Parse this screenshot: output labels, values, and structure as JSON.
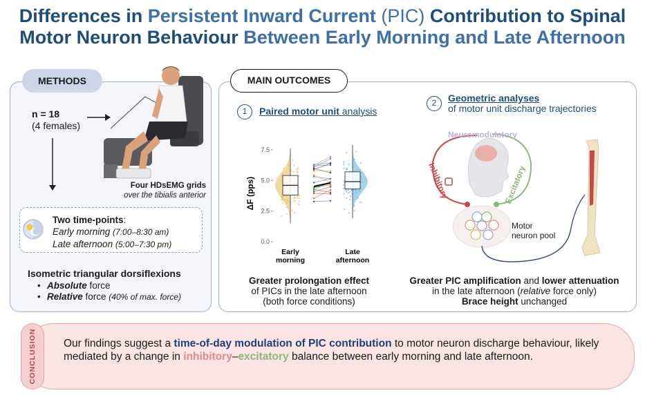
{
  "title": {
    "line1": {
      "a": "Differences in ",
      "b": "Persistent Inward Current",
      "c": " (PIC) ",
      "d": "Contribution to Spinal"
    },
    "line2": {
      "a": "Motor Neuron Behaviour ",
      "b": "Between Early Morning and Late Afternoon"
    }
  },
  "methods": {
    "pill": "METHODS",
    "n": "n = 18",
    "females": "(4 females)",
    "hdsemg_bold": "Four HDsEMG grids",
    "hdsemg_sub": "over the tibialis anterior",
    "timepoints_title": "Two time-points",
    "timepoints_colon": ":",
    "early_label": "Early morning",
    "early_time": "(7:00–8:30 am)",
    "late_label": "Late afternoon",
    "late_time": "(5:00–7:30 pm)",
    "iso_title": "Isometric triangular dorsiflexions",
    "abs_bold": "Absolute",
    "abs_rest": " force",
    "rel_bold": "Relative",
    "rel_rest": " force ",
    "rel_note": "(40% of max. force)"
  },
  "outcomes": {
    "pill": "MAIN OUTCOMES",
    "sec1_num": "1",
    "sec1_bold": "Paired motor unit",
    "sec1_rest": " analysis",
    "sec2_num": "2",
    "sec2_bold": "Geometric analyses",
    "sec2_rest": "of motor unit discharge trajectories",
    "cap1_bold": "Greater prolongation effect",
    "cap1_l2": "of PICs in the late afternoon",
    "cap1_l3": "(both force conditions)",
    "cap2_b1": "Greater PIC amplification",
    "cap2_and": " and ",
    "cap2_b2": "lower attenuation",
    "cap2_l2a": "in the late afternoon (",
    "cap2_l2i": "relative",
    "cap2_l2b": " force only)",
    "cap2_l3b": "Brace height",
    "cap2_l3r": " unchanged",
    "neuromodulatory": "Neuromodulatory",
    "inhibitory": "Inhibitory",
    "excitatory": "Excitatory",
    "motor_pool_l1": "Motor",
    "motor_pool_l2": "neuron pool"
  },
  "chart_data": {
    "type": "violin",
    "categories": [
      "Early\nmorning",
      "Late\nafternoon"
    ],
    "cat_labels": [
      [
        "Early",
        "morning"
      ],
      [
        "Late",
        "afternoon"
      ]
    ],
    "ylabel": "ΔF (pps)",
    "ylim": [
      0,
      8
    ],
    "yticks": [
      "0.0",
      "2.5",
      "5.0",
      "7.5"
    ],
    "ytick_values": [
      0,
      2.5,
      5,
      7.5
    ],
    "series": [
      {
        "name": "Early morning",
        "color": "#e8b84a",
        "median": 4.6,
        "q1": 3.8,
        "q3": 5.4,
        "min": 1.5,
        "max": 7.6
      },
      {
        "name": "Late afternoon",
        "color": "#5aaee0",
        "median": 4.9,
        "q1": 4.3,
        "q3": 5.7,
        "min": 1.9,
        "max": 7.9
      }
    ],
    "paired_means": {
      "early": 4.5,
      "late": 4.8
    }
  },
  "conclusion": {
    "label": "CONCLUSION",
    "t1": "Our findings suggest a ",
    "t2": "time-of-day modulation of PIC contribution",
    "t3": " to motor neuron discharge behaviour, likely mediated by a change in ",
    "t4": "inhibitory",
    "t5": "–",
    "t6": "excitatory",
    "t7": " balance between early morning and late afternoon."
  }
}
